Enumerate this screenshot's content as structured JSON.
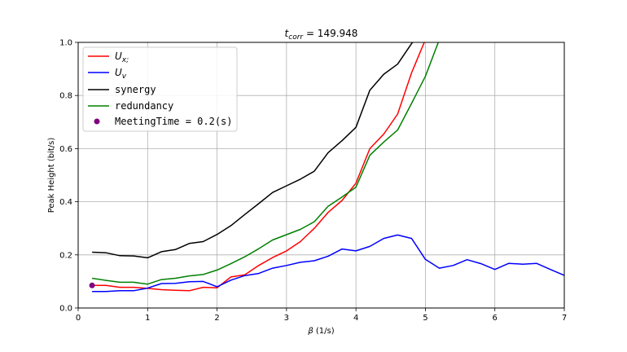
{
  "chart_data": {
    "type": "line",
    "title": "t_corr = 149.948",
    "title_parts": {
      "base": "t",
      "sub": "corr",
      "rest": " = 149.948"
    },
    "xlabel": "β (1/s)",
    "ylabel": "Peak Height (bit/s)",
    "xlim": [
      0,
      7
    ],
    "ylim": [
      0,
      1.0
    ],
    "xticks": [
      "0",
      "1",
      "2",
      "3",
      "4",
      "5",
      "6",
      "7"
    ],
    "yticks": [
      "0.0",
      "0.2",
      "0.4",
      "0.6",
      "0.8",
      "1.0"
    ],
    "grid": true,
    "legend_position": "upper-left",
    "series": [
      {
        "name": "U_x;",
        "legend_base": "U",
        "legend_sub": "x;",
        "color": "#ff0000",
        "x": [
          0.2,
          0.4,
          0.6,
          0.8,
          1.0,
          1.2,
          1.4,
          1.6,
          1.8,
          2.0,
          2.2,
          2.4,
          2.6,
          2.8,
          3.0,
          3.2,
          3.4,
          3.6,
          3.8,
          4.0,
          4.2,
          4.4,
          4.6,
          4.8,
          5.0
        ],
        "y": [
          0.085,
          0.085,
          0.078,
          0.078,
          0.074,
          0.069,
          0.067,
          0.065,
          0.078,
          0.076,
          0.117,
          0.125,
          0.16,
          0.19,
          0.215,
          0.25,
          0.3,
          0.36,
          0.405,
          0.47,
          0.6,
          0.655,
          0.73,
          0.885,
          1.01
        ]
      },
      {
        "name": "U_v",
        "legend_base": "U",
        "legend_sub": "v",
        "color": "#0000ff",
        "x": [
          0.2,
          0.4,
          0.6,
          0.8,
          1.0,
          1.2,
          1.4,
          1.6,
          1.8,
          2.0,
          2.2,
          2.4,
          2.6,
          2.8,
          3.0,
          3.2,
          3.4,
          3.6,
          3.8,
          4.0,
          4.2,
          4.4,
          4.6,
          4.8,
          5.0,
          5.2,
          5.4,
          5.6,
          5.8,
          6.0,
          6.2,
          6.4,
          6.6,
          6.8,
          7.0
        ],
        "y": [
          0.062,
          0.062,
          0.065,
          0.065,
          0.075,
          0.092,
          0.093,
          0.099,
          0.1,
          0.08,
          0.105,
          0.122,
          0.13,
          0.15,
          0.16,
          0.172,
          0.178,
          0.195,
          0.222,
          0.215,
          0.232,
          0.262,
          0.275,
          0.262,
          0.183,
          0.15,
          0.16,
          0.182,
          0.167,
          0.145,
          0.168,
          0.165,
          0.168,
          0.145,
          0.123
        ]
      },
      {
        "name": "synergy",
        "color": "#000000",
        "x": [
          0.2,
          0.4,
          0.6,
          0.8,
          1.0,
          1.2,
          1.4,
          1.6,
          1.8,
          2.0,
          2.2,
          2.4,
          2.6,
          2.8,
          3.0,
          3.2,
          3.4,
          3.6,
          3.8,
          4.0,
          4.2,
          4.4,
          4.6,
          4.8,
          5.0
        ],
        "y": [
          0.21,
          0.208,
          0.197,
          0.196,
          0.189,
          0.212,
          0.22,
          0.243,
          0.25,
          0.277,
          0.31,
          0.352,
          0.393,
          0.435,
          0.46,
          0.485,
          0.515,
          0.585,
          0.63,
          0.68,
          0.82,
          0.88,
          0.918,
          0.995,
          1.06
        ]
      },
      {
        "name": "redundancy",
        "color": "#008000",
        "x": [
          0.2,
          0.4,
          0.6,
          0.8,
          1.0,
          1.2,
          1.4,
          1.6,
          1.8,
          2.0,
          2.2,
          2.4,
          2.6,
          2.8,
          3.0,
          3.2,
          3.4,
          3.6,
          3.8,
          4.0,
          4.2,
          4.4,
          4.6,
          4.8,
          5.0,
          5.2
        ],
        "y": [
          0.112,
          0.104,
          0.097,
          0.097,
          0.09,
          0.107,
          0.112,
          0.121,
          0.126,
          0.143,
          0.167,
          0.193,
          0.223,
          0.256,
          0.276,
          0.296,
          0.325,
          0.383,
          0.418,
          0.455,
          0.575,
          0.625,
          0.67,
          0.77,
          0.872,
          1.01
        ]
      }
    ],
    "points": [
      {
        "name": "MeetingTime = 0.2(s)",
        "color": "#800080",
        "x": 0.2,
        "y": 0.085
      }
    ]
  }
}
